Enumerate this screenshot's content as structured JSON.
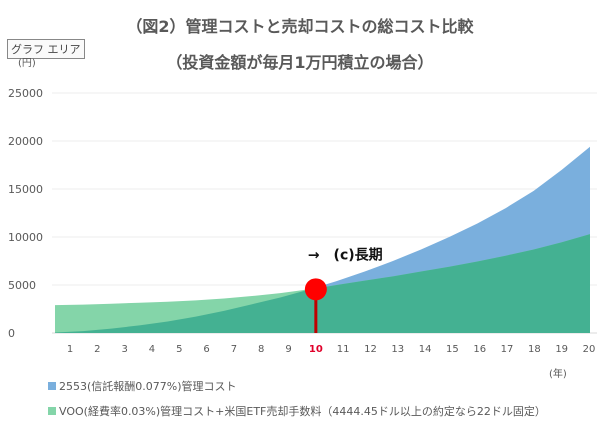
{
  "chart_data": {
    "type": "area",
    "title": "（図2）管理コストと売却コストの総コスト比較",
    "subtitle": "（投資金額が毎月1万円積立の場合）",
    "ylabel": "(円)",
    "xlabel": "(年)",
    "ylim": [
      0,
      25000
    ],
    "yticks": [
      0,
      5000,
      10000,
      15000,
      20000,
      25000
    ],
    "x": [
      1,
      2,
      3,
      4,
      5,
      6,
      7,
      8,
      9,
      10,
      11,
      12,
      13,
      14,
      15,
      16,
      17,
      18,
      19,
      20
    ],
    "series": [
      {
        "name": "2553(信託報酬0.077%)管理コスト",
        "color": "#7aafdd",
        "values": [
          50,
          200,
          450,
          800,
          1200,
          1700,
          2300,
          3000,
          3700,
          4500,
          5400,
          6400,
          7500,
          8700,
          10000,
          11400,
          13000,
          14800,
          17000,
          19400
        ]
      },
      {
        "name": "VOO(経費率0.03%)管理コスト+米国ETF売却手数料（4444.45ドル以上の約定なら22ドル固定）",
        "color": "#84d5a9",
        "values": [
          2900,
          2950,
          3050,
          3150,
          3250,
          3400,
          3600,
          3850,
          4150,
          4550,
          5000,
          5450,
          5900,
          6400,
          6900,
          7450,
          8050,
          8700,
          9450,
          10300
        ]
      }
    ],
    "overlap_color": "#44b192",
    "highlight": {
      "x": 10,
      "label": "→　(c)長期",
      "color": "#ff0000"
    },
    "grid": true,
    "legend_position": "bottom-left"
  },
  "ui": {
    "chart_area_tooltip": "グラフ エリア"
  }
}
